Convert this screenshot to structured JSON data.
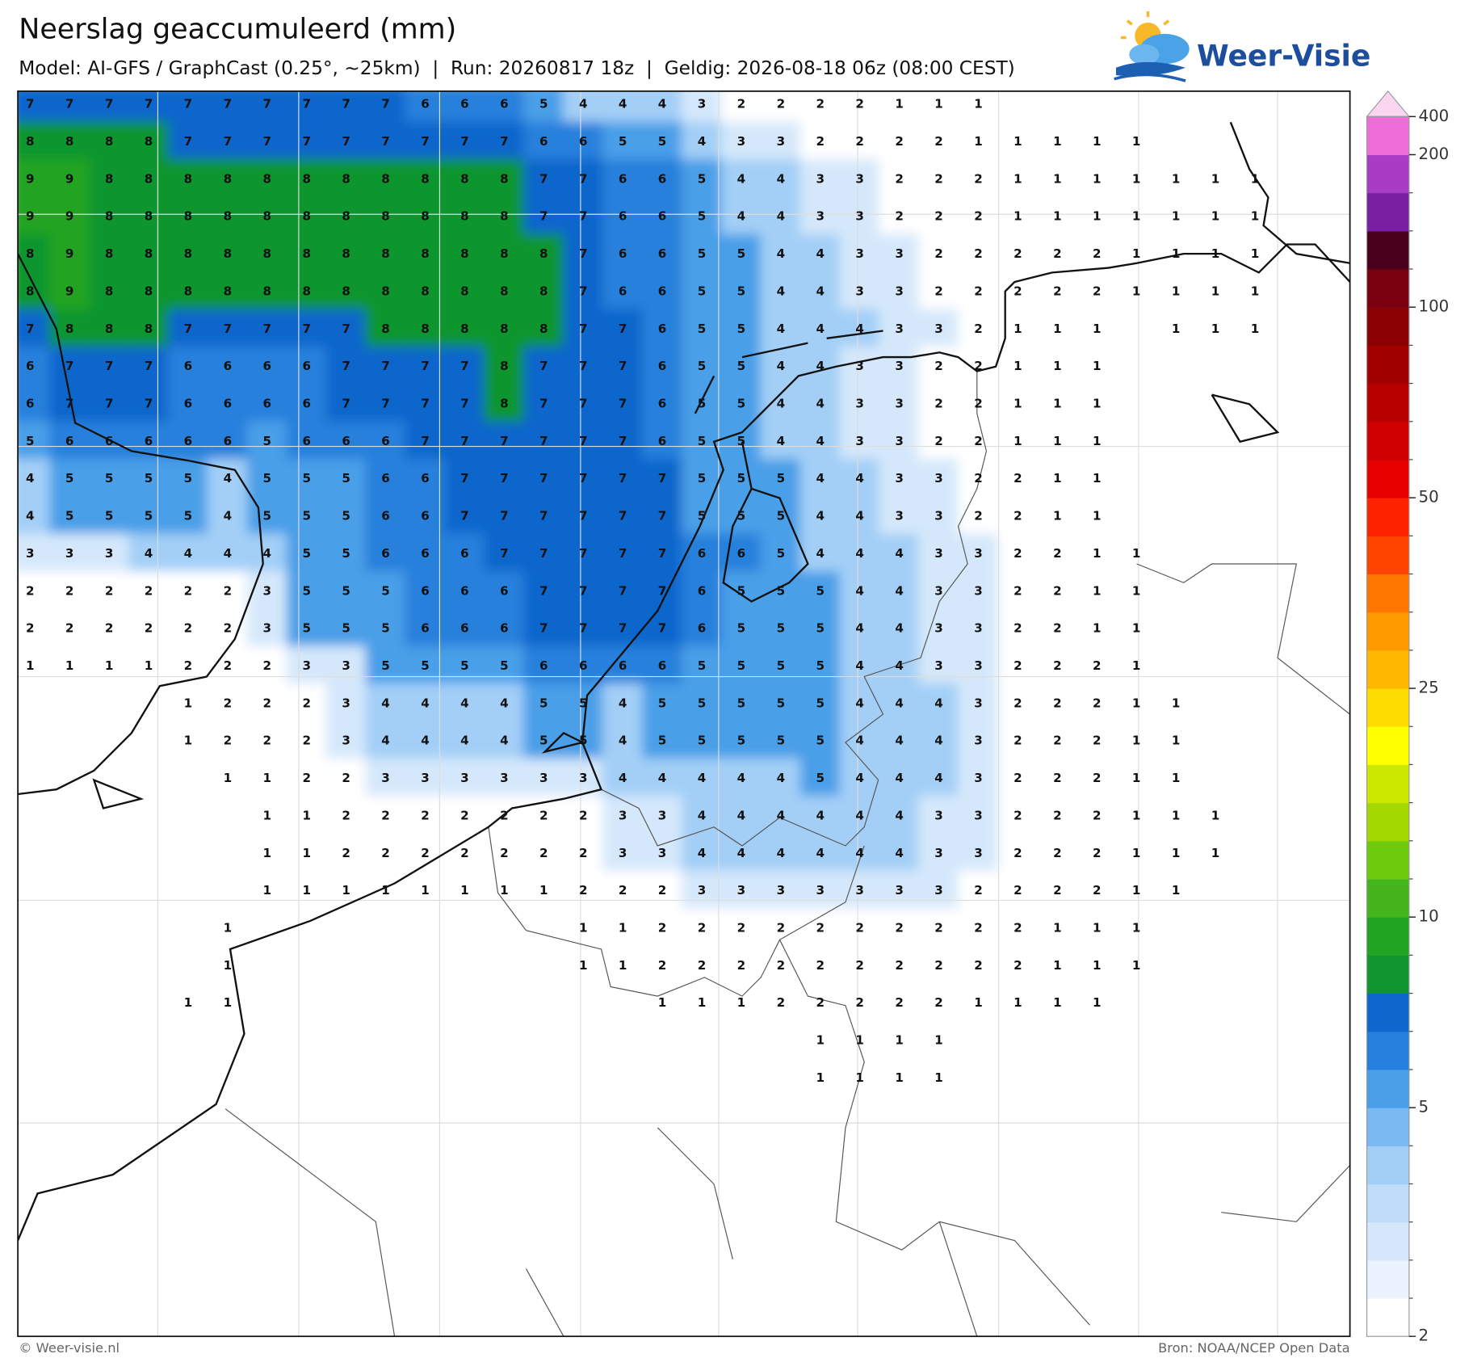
{
  "header": {
    "title": "Neerslag geaccumuleerd (mm)",
    "subtitle": "Model: AI-GFS / GraphCast (0.25°, ~25km)  |  Run: 20260817 18z  |  Geldig: 2026-08-18 06z (08:00 CEST)",
    "logo": "Weer-Visie"
  },
  "map": {
    "values": [
      [
        7,
        7,
        7,
        7,
        7,
        7,
        7,
        7,
        7,
        7,
        6,
        6,
        6,
        5,
        4,
        4,
        4,
        3,
        2,
        2,
        2,
        2,
        1,
        1,
        1,
        null,
        null,
        null,
        null,
        null,
        null,
        null
      ],
      [
        8,
        8,
        8,
        8,
        7,
        7,
        7,
        7,
        7,
        7,
        7,
        7,
        7,
        6,
        6,
        5,
        5,
        4,
        3,
        3,
        2,
        2,
        2,
        2,
        1,
        1,
        1,
        1,
        1,
        null,
        null,
        null
      ],
      [
        9,
        9,
        8,
        8,
        8,
        8,
        8,
        8,
        8,
        8,
        8,
        8,
        8,
        7,
        7,
        6,
        6,
        5,
        4,
        4,
        3,
        3,
        2,
        2,
        2,
        1,
        1,
        1,
        1,
        1,
        1,
        1
      ],
      [
        9,
        9,
        8,
        8,
        8,
        8,
        8,
        8,
        8,
        8,
        8,
        8,
        8,
        7,
        7,
        6,
        6,
        5,
        4,
        4,
        3,
        3,
        2,
        2,
        2,
        1,
        1,
        1,
        1,
        1,
        1,
        1
      ],
      [
        8,
        9,
        8,
        8,
        8,
        8,
        8,
        8,
        8,
        8,
        8,
        8,
        8,
        8,
        7,
        6,
        6,
        5,
        5,
        4,
        4,
        3,
        3,
        2,
        2,
        2,
        2,
        2,
        1,
        1,
        1,
        1
      ],
      [
        8,
        9,
        8,
        8,
        8,
        8,
        8,
        8,
        8,
        8,
        8,
        8,
        8,
        8,
        7,
        6,
        6,
        5,
        5,
        4,
        4,
        3,
        3,
        2,
        2,
        2,
        2,
        2,
        1,
        1,
        1,
        1
      ],
      [
        7,
        8,
        8,
        8,
        7,
        7,
        7,
        7,
        7,
        8,
        8,
        8,
        8,
        8,
        7,
        7,
        6,
        5,
        5,
        4,
        4,
        4,
        3,
        3,
        2,
        1,
        1,
        1,
        null,
        1,
        1,
        1
      ],
      [
        6,
        7,
        7,
        7,
        6,
        6,
        6,
        6,
        7,
        7,
        7,
        7,
        8,
        7,
        7,
        7,
        6,
        5,
        5,
        4,
        4,
        3,
        3,
        2,
        2,
        1,
        1,
        1,
        null,
        null,
        null,
        null
      ],
      [
        6,
        7,
        7,
        7,
        6,
        6,
        6,
        6,
        7,
        7,
        7,
        7,
        8,
        7,
        7,
        7,
        6,
        5,
        5,
        4,
        4,
        3,
        3,
        2,
        2,
        1,
        1,
        1,
        null,
        null,
        null,
        null
      ],
      [
        5,
        6,
        6,
        6,
        6,
        6,
        5,
        6,
        6,
        6,
        7,
        7,
        7,
        7,
        7,
        7,
        6,
        5,
        5,
        4,
        4,
        3,
        3,
        2,
        2,
        1,
        1,
        1,
        null,
        null,
        null,
        null
      ],
      [
        4,
        5,
        5,
        5,
        5,
        4,
        5,
        5,
        5,
        6,
        6,
        7,
        7,
        7,
        7,
        7,
        7,
        5,
        5,
        5,
        4,
        4,
        3,
        3,
        2,
        2,
        1,
        1,
        null,
        null,
        null,
        null
      ],
      [
        4,
        5,
        5,
        5,
        5,
        4,
        5,
        5,
        5,
        6,
        6,
        7,
        7,
        7,
        7,
        7,
        7,
        5,
        5,
        5,
        4,
        4,
        3,
        3,
        2,
        2,
        1,
        1,
        null,
        null,
        null,
        null
      ],
      [
        3,
        3,
        3,
        4,
        4,
        4,
        4,
        5,
        5,
        6,
        6,
        6,
        7,
        7,
        7,
        7,
        7,
        6,
        6,
        5,
        4,
        4,
        4,
        3,
        3,
        2,
        2,
        1,
        1,
        null,
        null,
        null
      ],
      [
        2,
        2,
        2,
        2,
        2,
        2,
        3,
        5,
        5,
        5,
        6,
        6,
        6,
        7,
        7,
        7,
        7,
        6,
        5,
        5,
        5,
        4,
        4,
        3,
        3,
        2,
        2,
        1,
        1,
        null,
        null,
        null
      ],
      [
        2,
        2,
        2,
        2,
        2,
        2,
        3,
        5,
        5,
        5,
        6,
        6,
        6,
        7,
        7,
        7,
        7,
        6,
        5,
        5,
        5,
        4,
        4,
        3,
        3,
        2,
        2,
        1,
        1,
        null,
        null,
        null
      ],
      [
        1,
        1,
        1,
        1,
        2,
        2,
        2,
        3,
        3,
        5,
        5,
        5,
        5,
        6,
        6,
        6,
        6,
        5,
        5,
        5,
        5,
        4,
        4,
        3,
        3,
        2,
        2,
        2,
        1,
        null,
        null,
        null
      ],
      [
        null,
        null,
        null,
        null,
        1,
        2,
        2,
        2,
        3,
        4,
        4,
        4,
        4,
        5,
        5,
        4,
        5,
        5,
        5,
        5,
        5,
        4,
        4,
        4,
        3,
        2,
        2,
        2,
        1,
        1,
        null,
        null
      ],
      [
        null,
        null,
        null,
        null,
        1,
        2,
        2,
        2,
        3,
        4,
        4,
        4,
        4,
        5,
        5,
        4,
        5,
        5,
        5,
        5,
        5,
        4,
        4,
        4,
        3,
        2,
        2,
        2,
        1,
        1,
        null,
        null
      ],
      [
        null,
        null,
        null,
        null,
        null,
        1,
        1,
        2,
        2,
        3,
        3,
        3,
        3,
        3,
        3,
        4,
        4,
        4,
        4,
        4,
        5,
        4,
        4,
        4,
        3,
        2,
        2,
        2,
        1,
        1,
        null,
        null
      ],
      [
        null,
        null,
        null,
        null,
        null,
        null,
        1,
        1,
        2,
        2,
        2,
        2,
        2,
        2,
        2,
        3,
        3,
        4,
        4,
        4,
        4,
        4,
        4,
        3,
        3,
        2,
        2,
        2,
        1,
        1,
        1,
        null
      ],
      [
        null,
        null,
        null,
        null,
        null,
        null,
        1,
        1,
        2,
        2,
        2,
        2,
        2,
        2,
        2,
        3,
        3,
        4,
        4,
        4,
        4,
        4,
        4,
        3,
        3,
        2,
        2,
        2,
        1,
        1,
        1,
        null
      ],
      [
        null,
        null,
        null,
        null,
        null,
        null,
        1,
        1,
        1,
        1,
        1,
        1,
        1,
        1,
        2,
        2,
        2,
        3,
        3,
        3,
        3,
        3,
        3,
        3,
        2,
        2,
        2,
        2,
        1,
        1,
        null,
        null
      ],
      [
        null,
        null,
        null,
        null,
        null,
        1,
        null,
        null,
        null,
        null,
        null,
        null,
        null,
        null,
        1,
        1,
        2,
        2,
        2,
        2,
        2,
        2,
        2,
        2,
        2,
        2,
        1,
        1,
        1,
        null,
        null,
        null
      ],
      [
        null,
        null,
        null,
        null,
        null,
        1,
        null,
        null,
        null,
        null,
        null,
        null,
        null,
        null,
        1,
        1,
        2,
        2,
        2,
        2,
        2,
        2,
        2,
        2,
        2,
        2,
        1,
        1,
        1,
        null,
        null,
        null
      ],
      [
        null,
        null,
        null,
        null,
        1,
        1,
        null,
        null,
        null,
        null,
        null,
        null,
        null,
        null,
        null,
        null,
        1,
        1,
        1,
        2,
        2,
        2,
        2,
        2,
        1,
        1,
        1,
        1,
        null,
        null,
        null,
        null
      ],
      [
        null,
        null,
        null,
        null,
        null,
        null,
        null,
        null,
        null,
        null,
        null,
        null,
        null,
        null,
        null,
        null,
        null,
        null,
        null,
        null,
        1,
        1,
        1,
        1,
        null,
        null,
        null,
        null,
        null,
        null,
        null,
        null
      ],
      [
        null,
        null,
        null,
        null,
        null,
        null,
        null,
        null,
        null,
        null,
        null,
        null,
        null,
        null,
        null,
        null,
        null,
        null,
        null,
        null,
        1,
        1,
        1,
        1,
        null,
        null,
        null,
        null,
        null,
        null,
        null,
        null
      ]
    ],
    "colorbar": {
      "levels": [
        2,
        2.5,
        3,
        3.5,
        4,
        4.5,
        5,
        6,
        7,
        8,
        9,
        10,
        12.5,
        15,
        17.5,
        20,
        22.5,
        25,
        30,
        35,
        40,
        45,
        50,
        60,
        70,
        80,
        90,
        100,
        125,
        150,
        175,
        200,
        400
      ],
      "colors": [
        "#ffffff",
        "#eaf3fd",
        "#d5e8fb",
        "#bfddf9",
        "#a3cff7",
        "#7ab9f2",
        "#4a9fe8",
        "#2580dc",
        "#0f66cc",
        "#11962f",
        "#21a421",
        "#44b51c",
        "#6ecb0c",
        "#a3d800",
        "#cce800",
        "#ffff00",
        "#ffdc00",
        "#ffb700",
        "#ff9900",
        "#ff7700",
        "#ff4400",
        "#ff2200",
        "#e60000",
        "#d00000",
        "#b80000",
        "#a00000",
        "#8b0000",
        "#7a0010",
        "#4a001a",
        "#7a1fa2",
        "#a83cc4",
        "#ee6ed8"
      ],
      "extend_color": "#fcd6f0",
      "ticks": [
        2,
        5,
        10,
        25,
        50,
        100,
        200,
        400
      ]
    }
  },
  "footer": {
    "left": "© Weer-visie.nl",
    "right": "Bron: NOAA/NCEP Open Data"
  }
}
